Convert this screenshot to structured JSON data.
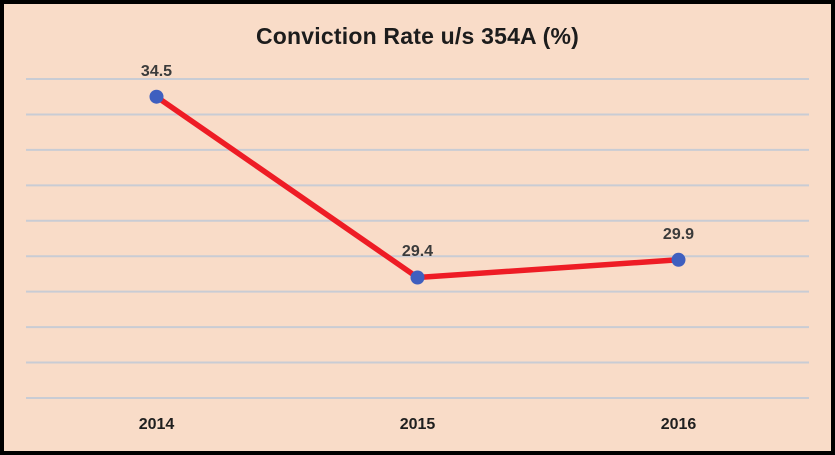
{
  "chart_data": {
    "type": "line",
    "title": "Conviction Rate u/s 354A (%)",
    "categories": [
      "2014",
      "2015",
      "2016"
    ],
    "series": [
      {
        "name": "Conviction Rate u/s 354A (%)",
        "values": [
          34.5,
          29.4,
          29.9
        ]
      }
    ],
    "data_labels": [
      "34.5",
      "29.4",
      "29.9"
    ],
    "xlabel": "",
    "ylabel": "",
    "ylim": [
      26,
      35
    ],
    "gridline_step": 1,
    "grid": "horizontal",
    "legend": "none",
    "colors": {
      "background": "#f9dcc8",
      "frame_border": "#000000",
      "line": "#ee1c25",
      "marker": "#3f5fbf",
      "gridline": "#c9ccd4",
      "title_text": "#1c1c1c",
      "data_label_text": "#3b3b3b",
      "axis_label_text": "#1f1f1f"
    }
  }
}
